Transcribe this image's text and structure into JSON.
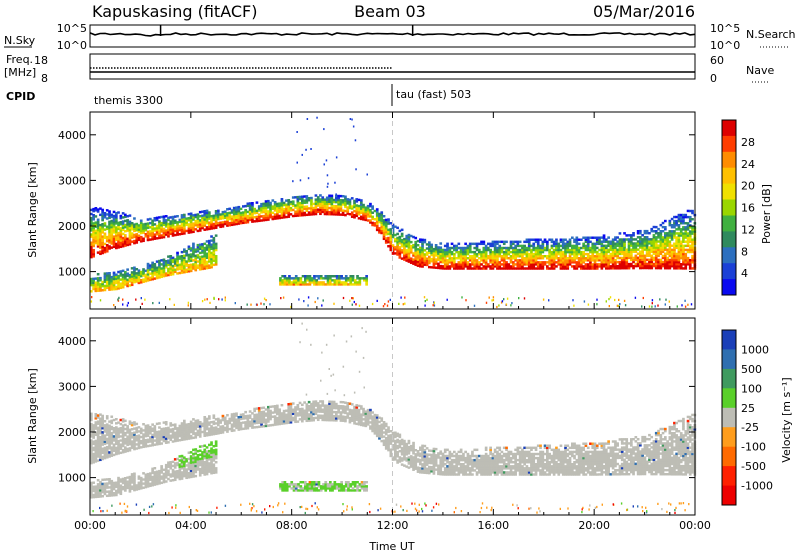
{
  "header": {
    "station": "Kapuskasing (fitACF)",
    "beam": "Beam 03",
    "date": "05/Mar/2016"
  },
  "strips": {
    "nsky_label": "N.Sky",
    "nsky_ticks": [
      "10^5",
      "10^0"
    ],
    "nsearch_label": "N.Search",
    "nsearch_ticks": [
      "10^5",
      "10^0"
    ],
    "freq_label": "Freq.",
    "freq_unit": "[MHz]",
    "freq_ticks": [
      "18",
      "8"
    ],
    "nave_label": "Nave",
    "nave_ticks": [
      "60",
      "0"
    ],
    "cpid_label": "CPID",
    "cpid_modes": [
      "themis 3300",
      "tau (fast) 503"
    ]
  },
  "colors": {
    "background": "#ffffff",
    "axis": "#000000",
    "ground_scatter": "#bdbdb5",
    "dashed_marker": "#c8c8c8"
  },
  "chart_data": [
    {
      "type": "heatmap",
      "title": "",
      "xlabel": "",
      "ylabel": "Slant Range [km]",
      "colorbar_label": "Power [dB]",
      "colorbar_ticks": [
        "28",
        "24",
        "20",
        "16",
        "12",
        "8",
        "4"
      ],
      "colorbar_colors": [
        "#dd0000",
        "#ff3d00",
        "#ff8c00",
        "#ffc000",
        "#f0e000",
        "#9ad600",
        "#40b040",
        "#2f8a5e",
        "#2c6fbf",
        "#1b40d6",
        "#0a0af0"
      ],
      "x_ticks": [
        "00:00",
        "04:00",
        "08:00",
        "12:00",
        "16:00",
        "20:00",
        "00:00"
      ],
      "y_ticks": [
        "1000",
        "2000",
        "3000",
        "4000"
      ],
      "xlim": [
        0,
        24
      ],
      "ylim": [
        180,
        4500
      ],
      "echo_bands": [
        {
          "name": "main",
          "t": [
            0,
            1,
            2,
            3,
            4,
            5,
            6,
            7,
            8,
            9,
            10,
            11,
            11.5,
            12,
            13,
            14,
            16,
            18,
            20,
            22,
            24
          ],
          "lower": [
            1300,
            1500,
            1650,
            1750,
            1850,
            1950,
            2050,
            2120,
            2200,
            2250,
            2230,
            2100,
            1800,
            1350,
            1100,
            1050,
            1050,
            1050,
            1050,
            1060,
            1050
          ],
          "upper": [
            2400,
            2300,
            2150,
            2200,
            2300,
            2350,
            2450,
            2550,
            2650,
            2700,
            2650,
            2500,
            2300,
            2000,
            1700,
            1600,
            1650,
            1700,
            1750,
            1900,
            2400
          ]
        },
        {
          "name": "near",
          "t": [
            0,
            1,
            2,
            3,
            4,
            5
          ],
          "lower": [
            550,
            600,
            750,
            900,
            1000,
            1100
          ],
          "upper": [
            900,
            1000,
            1100,
            1300,
            1600,
            1800
          ]
        },
        {
          "name": "middle",
          "t": [
            7.5,
            8,
            9,
            10,
            11
          ],
          "lower": [
            700,
            700,
            700,
            700,
            700
          ],
          "upper": [
            900,
            900,
            900,
            900,
            900
          ]
        }
      ]
    },
    {
      "type": "heatmap",
      "title": "",
      "xlabel": "Time UT",
      "ylabel": "Slant Range [km]",
      "colorbar_label": "Velocity [m s⁻¹]",
      "colorbar_ticks": [
        "1000",
        "500",
        "100",
        "25",
        "-25",
        "-100",
        "-500",
        "-1000"
      ],
      "colorbar_colors": [
        "#1a3fb8",
        "#2f6fb0",
        "#3f9a5f",
        "#5ad02a",
        "#bdbdb5",
        "#ff9d1c",
        "#ff6a00",
        "#ff2000",
        "#ee0000"
      ],
      "x_ticks": [
        "00:00",
        "04:00",
        "08:00",
        "12:00",
        "16:00",
        "20:00",
        "00:00"
      ],
      "y_ticks": [
        "1000",
        "2000",
        "3000",
        "4000"
      ],
      "xlim": [
        0,
        24
      ],
      "ylim": [
        180,
        4500
      ]
    }
  ]
}
